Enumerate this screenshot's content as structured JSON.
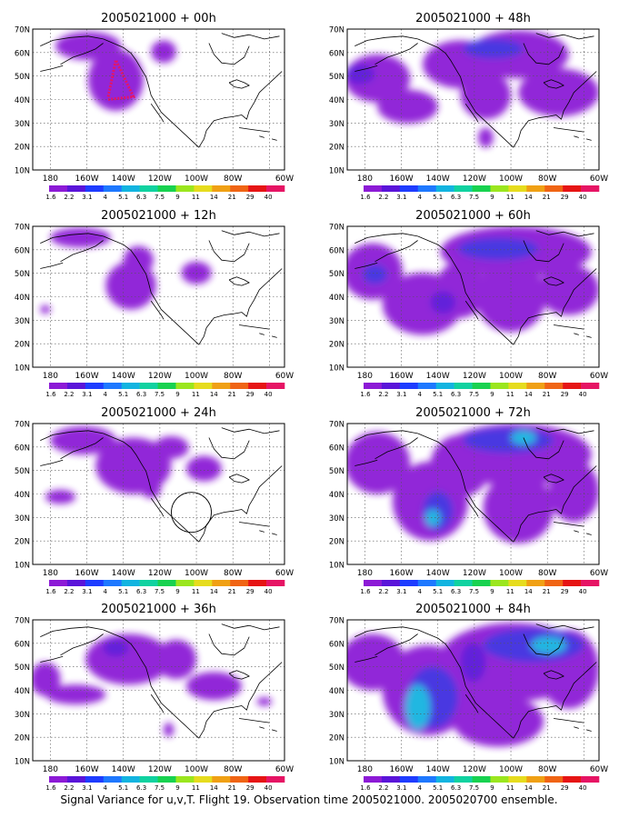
{
  "figure": {
    "caption": "Signal Variance for u,v,T. Flight 19. Observation time 2005021000. 2005020700 ensemble."
  },
  "map": {
    "lat_labels": [
      "70N",
      "60N",
      "50N",
      "40N",
      "30N",
      "20N",
      "10N"
    ],
    "lon_labels": [
      "180",
      "160W",
      "140W",
      "120W",
      "100W",
      "80W",
      "60W"
    ]
  },
  "colorbar": {
    "labels": [
      "1.6",
      "2.2",
      "3.1",
      "4",
      "5.1",
      "6.3",
      "7.5",
      "9",
      "11",
      "14",
      "21",
      "29",
      "40"
    ],
    "colors": [
      "#8c1ad6",
      "#5a14d9",
      "#1e3cff",
      "#1e78ff",
      "#12b4e0",
      "#10d2a0",
      "#18d250",
      "#9be61e",
      "#e6dc1e",
      "#f0a014",
      "#f06414",
      "#e61414",
      "#e61464"
    ]
  },
  "panels": [
    {
      "title": "2005021000 + 00h"
    },
    {
      "title": "2005021000 + 48h"
    },
    {
      "title": "2005021000 + 12h"
    },
    {
      "title": "2005021000 + 60h"
    },
    {
      "title": "2005021000 + 24h"
    },
    {
      "title": "2005021000 + 72h"
    },
    {
      "title": "2005021000 + 36h"
    },
    {
      "title": "2005021000 + 84h"
    }
  ]
}
